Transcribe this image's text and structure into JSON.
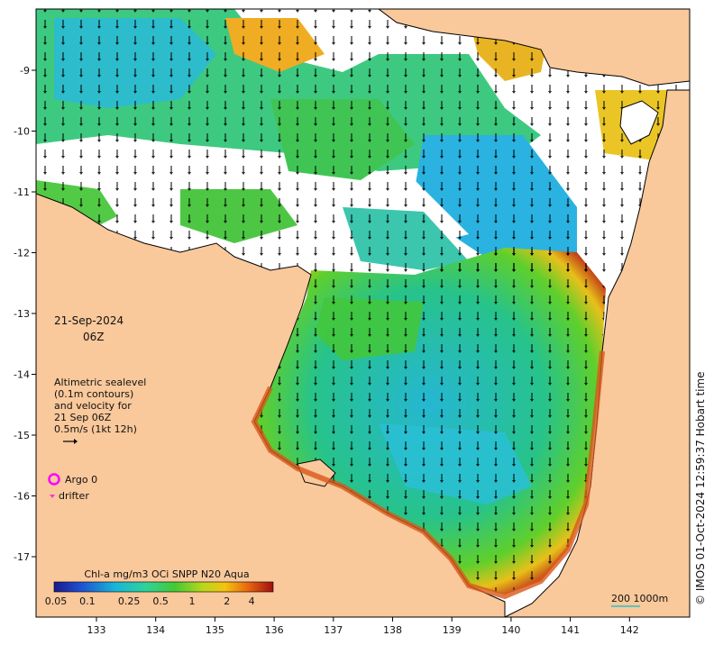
{
  "map": {
    "date_line1": "21-Sep-2024",
    "date_line2": "06Z",
    "altimetry": [
      "Altimetric sealevel",
      "(0.1m contours)",
      "and velocity for",
      "21 Sep 06Z",
      "0.5m/s (1kt 12h)"
    ],
    "legend": {
      "argo": "Argo 0",
      "drifter": "drifter"
    },
    "colorbar": {
      "title": "Chl-a mg/m3 OCi SNPP N20 Aqua",
      "ticks": [
        "0.05",
        "0.1",
        "0.25",
        "0.5",
        "1",
        "2",
        "4"
      ]
    },
    "scale_bar": "200  1000m",
    "credit": "© IMOS 01-Oct-2024 12:59:37 Hobart time",
    "lon_ticks": [
      "133",
      "134",
      "135",
      "136",
      "137",
      "138",
      "139",
      "140",
      "141",
      "142"
    ],
    "lat_ticks": [
      "-9",
      "-10",
      "-11",
      "-12",
      "-13",
      "-14",
      "-15",
      "-16",
      "-17"
    ],
    "colors": {
      "land": "#f9c89b",
      "coast": "#000000",
      "argo": "#ff00ff",
      "drifter": "#ff33cc"
    }
  }
}
